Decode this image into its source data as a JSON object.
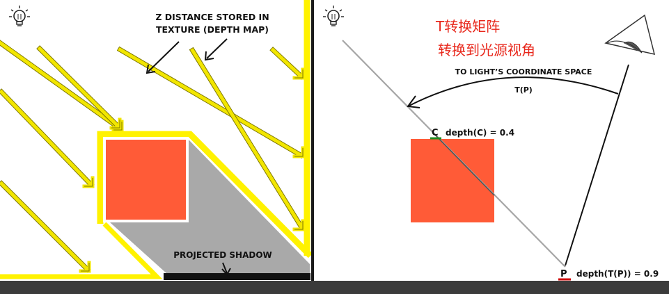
{
  "left_panel": {
    "depth_map_label_line1": "Z DISTANCE STORED IN",
    "depth_map_label_line2": "TEXTURE (DEPTH MAP)",
    "projected_shadow_label": "PROJECTED SHADOW",
    "light_icon": "light-bulb-icon"
  },
  "right_panel": {
    "chinese_title_line1": "T转换矩阵",
    "chinese_title_line2": "转换到光源视角",
    "transform_label": "TO LIGHT’S COORDINATE SPACE",
    "transform_symbol": "T(P)",
    "point_c_letter": "C",
    "point_c_depth": "depth(C) = 0.4",
    "point_p_letter": "P",
    "point_p_depth": "depth(T(P)) = 0.9",
    "light_icon": "light-bulb-icon",
    "eye_icon": "camera-eye-icon"
  },
  "colors": {
    "light_ray": "#f2e600",
    "light_ray_outline": "#807a00",
    "depth_outline": "#fff200",
    "occluder": "#ff5b37",
    "shadow": "#a9a9a9",
    "shadow_floor": "#111111",
    "chinese_text": "#e8261a",
    "point_c": "#1f8a1f",
    "point_p": "#d00000",
    "bottom_bar": "#3b3b3b",
    "divider": "#1a1a1a"
  }
}
